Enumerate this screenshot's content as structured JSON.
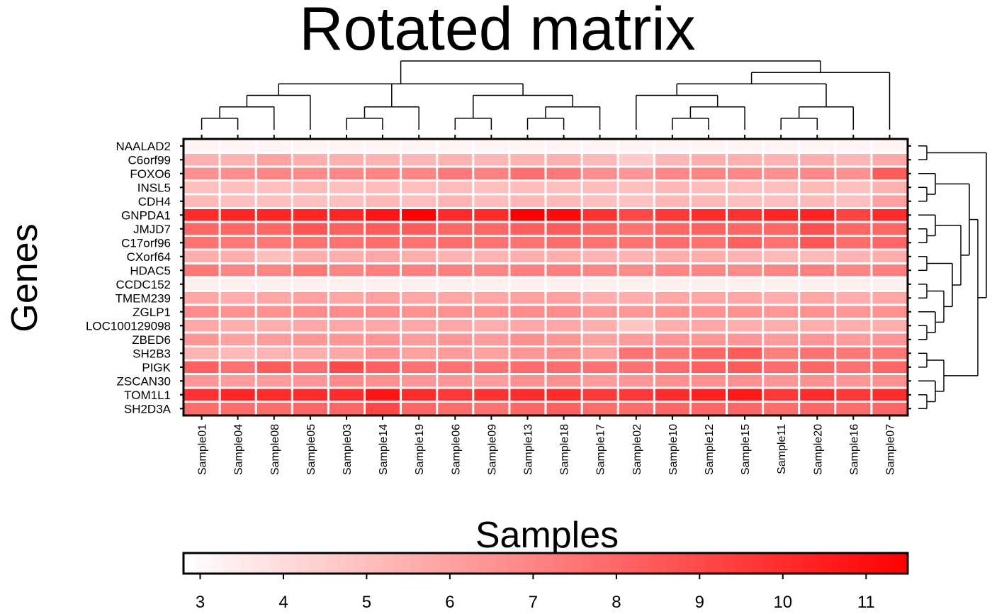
{
  "chart_data": {
    "type": "heatmap",
    "title": "Rotated matrix",
    "xlabel": "Samples",
    "ylabel": "Genes",
    "samples": [
      "Sample01",
      "Sample04",
      "Sample08",
      "Sample05",
      "Sample03",
      "Sample14",
      "Sample19",
      "Sample06",
      "Sample09",
      "Sample13",
      "Sample18",
      "Sample17",
      "Sample02",
      "Sample10",
      "Sample12",
      "Sample15",
      "Sample11",
      "Sample20",
      "Sample16",
      "Sample07"
    ],
    "genes": [
      "NAALAD2",
      "C6orf99",
      "FOXO6",
      "INSL5",
      "CDH4",
      "GNPDA1",
      "JMJD7",
      "C17orf96",
      "CXorf64",
      "HDAC5",
      "CCDC152",
      "TMEM239",
      "ZGLP1",
      "LOC100129098",
      "ZBED6",
      "SH2B3",
      "PIGK",
      "ZSCAN30",
      "TOM1L1",
      "SH2D3A"
    ],
    "values": [
      [
        3.2,
        3.2,
        3.2,
        3.2,
        3.2,
        3.2,
        3.2,
        3.2,
        3.2,
        3.2,
        3.2,
        3.2,
        3.2,
        3.2,
        3.2,
        3.2,
        3.2,
        3.2,
        3.2,
        3.2
      ],
      [
        5.5,
        5.4,
        6.0,
        5.6,
        5.5,
        5.4,
        5.3,
        5.4,
        5.3,
        5.4,
        5.5,
        5.2,
        4.6,
        5.3,
        5.6,
        5.5,
        5.4,
        5.6,
        5.3,
        5.7
      ],
      [
        6.6,
        6.7,
        7.0,
        6.8,
        6.9,
        7.0,
        7.0,
        7.4,
        7.1,
        7.7,
        7.4,
        6.7,
        6.4,
        6.9,
        7.0,
        6.9,
        6.6,
        6.9,
        6.6,
        8.4
      ],
      [
        5.0,
        5.0,
        5.0,
        5.2,
        5.0,
        5.1,
        5.0,
        5.1,
        5.0,
        5.1,
        5.0,
        5.1,
        5.0,
        5.3,
        5.1,
        5.0,
        5.0,
        5.2,
        5.0,
        5.5
      ],
      [
        5.2,
        5.0,
        5.0,
        5.0,
        5.0,
        5.2,
        5.0,
        5.4,
        5.1,
        5.3,
        5.2,
        5.0,
        4.9,
        5.3,
        5.2,
        5.0,
        5.0,
        5.2,
        5.0,
        6.0
      ],
      [
        10.0,
        10.2,
        10.2,
        10.2,
        10.2,
        10.8,
        11.5,
        10.0,
        10.0,
        11.5,
        11.2,
        9.8,
        9.0,
        9.6,
        10.0,
        9.8,
        10.2,
        10.3,
        9.2,
        10.0
      ],
      [
        8.0,
        8.0,
        8.0,
        8.6,
        8.2,
        8.4,
        8.4,
        8.0,
        8.0,
        8.3,
        8.4,
        8.0,
        7.6,
        8.0,
        8.2,
        8.0,
        8.0,
        8.8,
        8.0,
        8.0
      ],
      [
        7.6,
        7.4,
        7.4,
        7.6,
        7.6,
        7.8,
        7.6,
        7.8,
        7.6,
        7.6,
        7.8,
        7.6,
        7.6,
        7.8,
        7.6,
        8.2,
        7.6,
        8.6,
        7.8,
        8.0
      ],
      [
        5.6,
        5.6,
        5.0,
        5.6,
        5.6,
        5.8,
        5.6,
        5.4,
        5.4,
        5.6,
        5.6,
        5.4,
        5.4,
        5.6,
        5.6,
        5.4,
        5.2,
        5.2,
        5.4,
        5.6
      ],
      [
        7.4,
        7.0,
        7.0,
        7.4,
        7.0,
        7.2,
        7.2,
        7.2,
        7.0,
        7.2,
        7.2,
        7.0,
        6.8,
        7.0,
        7.0,
        6.8,
        7.0,
        7.2,
        7.0,
        7.2
      ],
      [
        3.3,
        3.3,
        3.3,
        3.3,
        3.3,
        3.3,
        3.3,
        3.3,
        3.3,
        3.3,
        3.3,
        3.3,
        3.3,
        3.3,
        3.3,
        3.3,
        3.3,
        3.3,
        3.3,
        3.3
      ],
      [
        5.8,
        5.6,
        5.8,
        6.0,
        5.8,
        6.0,
        5.8,
        5.8,
        5.8,
        6.0,
        6.0,
        5.6,
        5.6,
        5.8,
        5.8,
        5.8,
        5.6,
        5.8,
        5.6,
        5.8
      ],
      [
        6.8,
        6.6,
        6.6,
        6.8,
        6.8,
        6.8,
        6.6,
        6.6,
        6.6,
        6.8,
        6.8,
        6.4,
        6.4,
        6.6,
        6.6,
        6.6,
        6.4,
        6.6,
        6.4,
        6.6
      ],
      [
        5.8,
        5.6,
        5.6,
        5.8,
        5.8,
        5.8,
        5.8,
        5.8,
        5.6,
        5.8,
        5.8,
        5.6,
        4.8,
        5.6,
        5.8,
        5.6,
        5.6,
        5.6,
        5.6,
        5.6
      ],
      [
        6.4,
        6.0,
        6.2,
        6.4,
        6.4,
        6.4,
        6.2,
        6.4,
        6.2,
        6.6,
        6.4,
        6.0,
        6.2,
        6.4,
        6.4,
        6.4,
        6.2,
        6.4,
        6.2,
        6.4
      ],
      [
        5.4,
        5.2,
        5.4,
        5.6,
        5.8,
        6.4,
        6.0,
        6.2,
        6.0,
        6.4,
        6.6,
        6.0,
        7.6,
        7.4,
        8.0,
        8.4,
        7.2,
        7.6,
        7.4,
        7.4
      ],
      [
        8.2,
        7.6,
        8.4,
        7.8,
        9.0,
        8.2,
        7.6,
        7.6,
        7.6,
        7.8,
        7.8,
        7.6,
        7.6,
        7.8,
        8.2,
        8.4,
        7.8,
        8.0,
        7.6,
        8.0
      ],
      [
        6.4,
        6.2,
        6.2,
        6.4,
        6.8,
        6.6,
        6.4,
        6.4,
        6.2,
        6.6,
        6.6,
        6.2,
        6.4,
        6.6,
        6.6,
        6.6,
        6.4,
        6.6,
        6.4,
        6.6
      ],
      [
        9.8,
        10.2,
        10.0,
        10.0,
        10.0,
        10.8,
        10.0,
        9.6,
        9.8,
        10.0,
        10.0,
        9.6,
        9.6,
        10.0,
        10.4,
        10.6,
        9.6,
        10.0,
        9.6,
        10.0
      ],
      [
        7.8,
        7.8,
        7.8,
        8.0,
        8.0,
        9.0,
        8.0,
        7.8,
        7.6,
        8.0,
        8.2,
        7.8,
        7.8,
        8.0,
        8.0,
        8.0,
        7.8,
        8.0,
        7.8,
        8.0
      ]
    ],
    "colorbar": {
      "min": 2.8,
      "max": 11.5,
      "ticks": [
        3,
        4,
        5,
        6,
        7,
        8,
        9,
        10,
        11
      ],
      "colors": [
        "#ffffff",
        "#ff0000"
      ]
    },
    "column_tree": [
      [
        [
          [
            [
              "Sample01",
              "Sample04"
            ],
            "Sample08"
          ],
          "Sample05"
        ],
        [
          [
            "Sample03",
            "Sample14"
          ],
          "Sample19"
        ],
        [
          [
            [
              "Sample06",
              "Sample09"
            ],
            [
              [
                "Sample13",
                "Sample18"
              ],
              "Sample17"
            ]
          ]
        ]
      ],
      [
        [
          [
            "Sample02",
            [
              [
                "Sample10",
                "Sample12"
              ],
              "Sample15"
            ]
          ],
          [
            [
              "Sample11",
              "Sample20"
            ],
            "Sample16"
          ]
        ],
        "Sample07"
      ]
    ],
    "row_tree": [
      [
        "NAALAD2",
        "C6orf99"
      ],
      [
        [
          [
            [
              "FOXO6",
              [
                "INSL5",
                "CDH4"
              ]
            ],
            [
              [
                "GNPDA1",
                [
                  "JMJD7",
                  "C17orf96"
                ]
              ],
              [
                [
                  "CXorf64",
                  "HDAC5"
                ],
                [
                  [
                    "CCDC152",
                    "TMEM239"
                  ],
                  [
                    "ZGLP1",
                    [
                      "LOC100129098",
                      "ZBED6"
                    ]
                  ]
                ]
              ]
            ]
          ]
        ],
        [
          [
            "SH2B3",
            "PIGK"
          ],
          [
            "ZSCAN30",
            [
              "TOM1L1",
              "SH2D3A"
            ]
          ]
        ]
      ]
    ]
  }
}
